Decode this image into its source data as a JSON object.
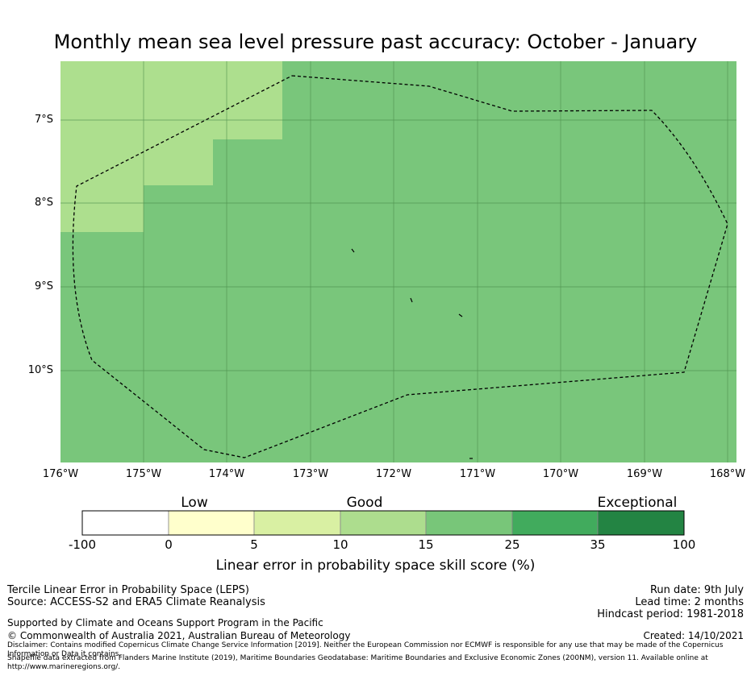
{
  "title": "Monthly mean sea level pressure past accuracy: October - January",
  "map": {
    "y_ticks": [
      "7°S",
      "8°S",
      "9°S",
      "10°S"
    ],
    "x_ticks": [
      "176°W",
      "175°W",
      "174°W",
      "173°W",
      "172°W",
      "171°W",
      "170°W",
      "169°W",
      "168°W"
    ],
    "fill_main": "#79c67b",
    "fill_light": "#addf8e",
    "grid_color": "#4a8a4a",
    "boundary_color": "#000000"
  },
  "colorbar": {
    "categories": [
      "Low",
      "Good",
      "Exceptional"
    ],
    "ticks": [
      "-100",
      "0",
      "5",
      "10",
      "15",
      "25",
      "35",
      "100"
    ],
    "colors": [
      "#ffffff",
      "#ffffcc",
      "#d9f0a3",
      "#addd8e",
      "#78c679",
      "#41ab5d",
      "#238443"
    ],
    "label": "Linear error in probability space skill score (%)"
  },
  "info": {
    "line1": "Tercile Linear Error in Probability Space (LEPS)",
    "line2": "Source: ACCESS-S2 and ERA5 Climate Reanalysis",
    "support": "Supported by Climate and Oceans Support Program in the Pacific",
    "copyright": "© Commonwealth of Australia 2021, Australian Bureau of Meteorology",
    "disclaimer": "Disclaimer: Contains modified Copernicus Climate Change Service Information [2019]. Neither the European Commission nor ECMWF is responsible for any use that may be made of the Copernicus Information or Data it contains.",
    "shapefile": "Shapefile data extracted from Flanders Marine Institute (2019), Maritime Boundaries Geodatabase: Maritime Boundaries and Exclusive Economic Zones (200NM), version 11. Available online at http://www.marineregions.org/.",
    "run_date": "Run date: 9th July",
    "lead_time": "Lead time: 2 months",
    "hindcast": "Hindcast period: 1981-2018",
    "created": "Created: 14/10/2021"
  }
}
